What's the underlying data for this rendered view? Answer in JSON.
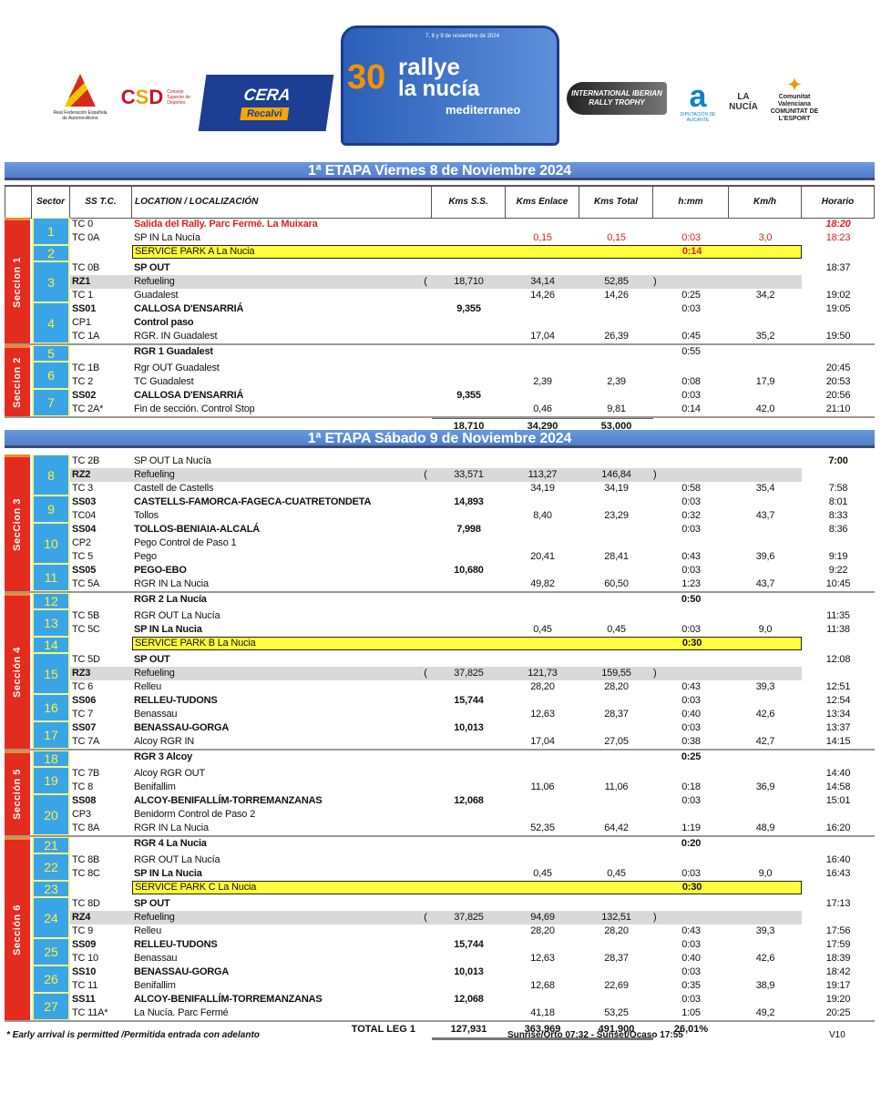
{
  "logos": {
    "fea": "Real Federación Española de Automovilismo",
    "csd": "Consejo Superior de Deportes",
    "cera": "CERA",
    "recalvi": "Recalvi",
    "rally_number": "30",
    "rally_name_1": "rallye",
    "rally_name_2": "la nucía",
    "rally_name_3": "mediterraneo",
    "rally_dates": "7, 8 y 9 de noviembre de 2024",
    "iberian": "INTERNATIONAL IBERIAN RALLY TROPHY",
    "diputacion": "DIPUTACIÓN DE ALICANTE",
    "lanucia": "LA NUCÍA",
    "esport": "Comunitat Valenciana COMUNITAT DE L'ESPORT"
  },
  "header": {
    "sector": "Sector",
    "ss": "SS T.C.",
    "location": "LOCATION / LOCALIZACIÓN",
    "kms_ss": "Kms S.S.",
    "kms_enlace": "Kms Enlace",
    "kms_total": "Kms Total",
    "hmm": "h:mm",
    "kmh": "Km/h",
    "horario": "Horario"
  },
  "colors": {
    "section": "#e32b1e",
    "sector": "#3aa5e6",
    "service": "#ffff3c",
    "refuel": "#d9d9d9",
    "stage_bar": "#5b8bd6"
  },
  "days": [
    {
      "title": "1ª ETAPA Viernes 8 de Noviembre 2024",
      "totals": {
        "ss": "18,710",
        "enlace": "34,290",
        "total": "53,000"
      },
      "sections": [
        {
          "label": "Seccion 1",
          "sectors": [
            {
              "num": "1",
              "rows": [
                [
                  "TC 0",
                  "Salida del Rally. Parc Fermé. La Muixara",
                  "",
                  "",
                  "",
                  "",
                  "",
                  "18:20",
                  "red0"
                ],
                [
                  "TC 0A",
                  "SP IN La Nucía",
                  "",
                  "0,15",
                  "0,15",
                  "0:03",
                  "3,0",
                  "18:23",
                  "red1"
                ]
              ]
            },
            {
              "num": "2",
              "rows": [
                [
                  "",
                  "SERVICE PARK A La Nucia",
                  "",
                  "",
                  "",
                  "0:14",
                  "",
                  "",
                  "spred"
                ]
              ]
            },
            {
              "num": "3",
              "rows": [
                [
                  "TC 0B",
                  "SP OUT",
                  "",
                  "",
                  "",
                  "",
                  "",
                  "18:37",
                  "bl"
                ],
                [
                  "RZ1",
                  "Refueling",
                  "18,710",
                  "34,14",
                  "52,85",
                  "",
                  "",
                  "",
                  "rz"
                ],
                [
                  "TC 1",
                  "Guadalest",
                  "",
                  "14,26",
                  "14,26",
                  "0:25",
                  "34,2",
                  "19:02",
                  ""
                ]
              ]
            },
            {
              "num": "4",
              "rows": [
                [
                  "SS01",
                  "CALLOSA D'ENSARRIÁ",
                  "9,355",
                  "",
                  "",
                  "0:03",
                  "",
                  "19:05",
                  "ss"
                ],
                [
                  "CP1",
                  "Control paso",
                  "",
                  "",
                  "",
                  "",
                  "",
                  "",
                  "bl"
                ],
                [
                  "TC 1A",
                  "RGR. IN Guadalest",
                  "",
                  "17,04",
                  "26,39",
                  "0:45",
                  "35,2",
                  "19:50",
                  ""
                ]
              ]
            }
          ]
        },
        {
          "label": "Seccion 2",
          "sectors": [
            {
              "num": "5",
              "rows": [
                [
                  "",
                  "RGR 1 Guadalest",
                  "",
                  "",
                  "",
                  "0:55",
                  "",
                  "",
                  "bl"
                ]
              ]
            },
            {
              "num": "6",
              "rows": [
                [
                  "TC 1B",
                  "Rgr OUT Guadalest",
                  "",
                  "",
                  "",
                  "",
                  "",
                  "20:45",
                  ""
                ],
                [
                  "TC 2",
                  "TC Guadalest",
                  "",
                  "2,39",
                  "2,39",
                  "0:08",
                  "17,9",
                  "20:53",
                  ""
                ]
              ]
            },
            {
              "num": "7",
              "rows": [
                [
                  "SS02",
                  "CALLOSA D'ENSARRIÁ",
                  "9,355",
                  "",
                  "",
                  "0:03",
                  "",
                  "20:56",
                  "ss"
                ],
                [
                  "TC 2A*",
                  "Fin de sección. Control Stop",
                  "",
                  "0,46",
                  "9,81",
                  "0:14",
                  "42,0",
                  "21:10",
                  ""
                ]
              ]
            }
          ]
        }
      ]
    },
    {
      "title": "1ª ETAPA Sábado 9 de Noviembre 2024",
      "sections": [
        {
          "label": "SecCion 3",
          "sectors": [
            {
              "num": "8",
              "rows": [
                [
                  "TC 2B",
                  "SP OUT La Nucía",
                  "",
                  "",
                  "",
                  "",
                  "",
                  "7:00",
                  "bh"
                ],
                [
                  "RZ2",
                  "Refueling",
                  "33,571",
                  "113,27",
                  "146,84",
                  "",
                  "",
                  "",
                  "rz"
                ],
                [
                  "TC 3",
                  "Castell de Castells",
                  "",
                  "34,19",
                  "34,19",
                  "0:58",
                  "35,4",
                  "7:58",
                  ""
                ]
              ]
            },
            {
              "num": "9",
              "rows": [
                [
                  "SS03",
                  "CASTELLS-FAMORCA-FAGECA-CUATRETONDETA",
                  "14,893",
                  "",
                  "",
                  "0:03",
                  "",
                  "8:01",
                  "ss"
                ],
                [
                  "TC04",
                  "Tollos",
                  "",
                  "8,40",
                  "23,29",
                  "0:32",
                  "43,7",
                  "8:33",
                  ""
                ]
              ]
            },
            {
              "num": "10",
              "rows": [
                [
                  "SS04",
                  "TOLLOS-BENIAIA-ALCALÁ",
                  "7,998",
                  "",
                  "",
                  "0:03",
                  "",
                  "8:36",
                  "ss"
                ],
                [
                  "CP2",
                  "Pego Control de Paso 1",
                  "",
                  "",
                  "",
                  "",
                  "",
                  "",
                  ""
                ],
                [
                  "TC 5",
                  "Pego",
                  "",
                  "20,41",
                  "28,41",
                  "0:43",
                  "39,6",
                  "9:19",
                  ""
                ]
              ]
            },
            {
              "num": "11",
              "rows": [
                [
                  "SS05",
                  "PEGO-EBO",
                  "10,680",
                  "",
                  "",
                  "0:03",
                  "",
                  "9:22",
                  "ss"
                ],
                [
                  "TC 5A",
                  "RGR IN La Nucia",
                  "",
                  "49,82",
                  "60,50",
                  "1:23",
                  "43,7",
                  "10:45",
                  ""
                ]
              ]
            }
          ]
        },
        {
          "label": "Sección 4",
          "sectors": [
            {
              "num": "12",
              "rows": [
                [
                  "",
                  "RGR 2 La Nucía",
                  "",
                  "",
                  "",
                  "0:50",
                  "",
                  "",
                  "blh"
                ]
              ]
            },
            {
              "num": "13",
              "rows": [
                [
                  "TC 5B",
                  "RGR OUT La Nucía",
                  "",
                  "",
                  "",
                  "",
                  "",
                  "11:35",
                  ""
                ],
                [
                  "TC 5C",
                  "SP IN La Nucia",
                  "",
                  "0,45",
                  "0,45",
                  "0:03",
                  "9,0",
                  "11:38",
                  "bl"
                ]
              ]
            },
            {
              "num": "14",
              "rows": [
                [
                  "",
                  "SERVICE PARK B La Nucia",
                  "",
                  "",
                  "",
                  "0:30",
                  "",
                  "",
                  "sp"
                ]
              ]
            },
            {
              "num": "15",
              "rows": [
                [
                  "TC 5D",
                  "SP OUT",
                  "",
                  "",
                  "",
                  "",
                  "",
                  "12:08",
                  "bl"
                ],
                [
                  "RZ3",
                  "Refueling",
                  "37,825",
                  "121,73",
                  "159,55",
                  "",
                  "",
                  "",
                  "rz"
                ],
                [
                  "TC 6",
                  "Relleu",
                  "",
                  "28,20",
                  "28,20",
                  "0:43",
                  "39,3",
                  "12:51",
                  ""
                ]
              ]
            },
            {
              "num": "16",
              "rows": [
                [
                  "SS06",
                  "RELLEU-TUDONS",
                  "15,744",
                  "",
                  "",
                  "0:03",
                  "",
                  "12:54",
                  "ss"
                ],
                [
                  "TC 7",
                  "Benassau",
                  "",
                  "12,63",
                  "28,37",
                  "0:40",
                  "42,6",
                  "13:34",
                  ""
                ]
              ]
            },
            {
              "num": "17",
              "rows": [
                [
                  "SS07",
                  "BENASSAU-GORGA",
                  "10,013",
                  "",
                  "",
                  "0:03",
                  "",
                  "13:37",
                  "ss"
                ],
                [
                  "TC 7A",
                  "Alcoy RGR IN",
                  "",
                  "17,04",
                  "27,05",
                  "0:38",
                  "42,7",
                  "14:15",
                  ""
                ]
              ]
            }
          ]
        },
        {
          "label": "Sección 5",
          "sectors": [
            {
              "num": "18",
              "rows": [
                [
                  "",
                  "RGR 3 Alcoy",
                  "",
                  "",
                  "",
                  "0:25",
                  "",
                  "",
                  "blh"
                ]
              ]
            },
            {
              "num": "19",
              "rows": [
                [
                  "TC 7B",
                  "Alcoy RGR OUT",
                  "",
                  "",
                  "",
                  "",
                  "",
                  "14:40",
                  ""
                ],
                [
                  "TC 8",
                  "Benifallim",
                  "",
                  "11,06",
                  "11,06",
                  "0:18",
                  "36,9",
                  "14:58",
                  ""
                ]
              ]
            },
            {
              "num": "20",
              "rows": [
                [
                  "SS08",
                  "ALCOY-BENIFALLÍM-TORREMANZANAS",
                  "12,068",
                  "",
                  "",
                  "0:03",
                  "",
                  "15:01",
                  "ss"
                ],
                [
                  "CP3",
                  "Benidorm Control de Paso 2",
                  "",
                  "",
                  "",
                  "",
                  "",
                  "",
                  ""
                ],
                [
                  "TC 8A",
                  "RGR IN La Nucia",
                  "",
                  "52,35",
                  "64,42",
                  "1:19",
                  "48,9",
                  "16:20",
                  ""
                ]
              ]
            }
          ]
        },
        {
          "label": "Sección 6",
          "sectors": [
            {
              "num": "21",
              "rows": [
                [
                  "",
                  "RGR 4 La Nucia",
                  "",
                  "",
                  "",
                  "0:20",
                  "",
                  "",
                  "blh"
                ]
              ]
            },
            {
              "num": "22",
              "rows": [
                [
                  "TC 8B",
                  "RGR OUT La Nucía",
                  "",
                  "",
                  "",
                  "",
                  "",
                  "16:40",
                  ""
                ],
                [
                  "TC 8C",
                  "SP IN La Nucia",
                  "",
                  "0,45",
                  "0,45",
                  "0:03",
                  "9,0",
                  "16:43",
                  "bl"
                ]
              ]
            },
            {
              "num": "23",
              "rows": [
                [
                  "",
                  "SERVICE PARK C La Nucia",
                  "",
                  "",
                  "",
                  "0:30",
                  "",
                  "",
                  "sp"
                ]
              ]
            },
            {
              "num": "24",
              "rows": [
                [
                  "TC 8D",
                  "SP OUT",
                  "",
                  "",
                  "",
                  "",
                  "",
                  "17:13",
                  "bl"
                ],
                [
                  "RZ4",
                  "Refueling",
                  "37,825",
                  "94,69",
                  "132,51",
                  "",
                  "",
                  "",
                  "rz"
                ],
                [
                  "TC 9",
                  "Relleu",
                  "",
                  "28,20",
                  "28,20",
                  "0:43",
                  "39,3",
                  "17:56",
                  ""
                ]
              ]
            },
            {
              "num": "25",
              "rows": [
                [
                  "SS09",
                  "RELLEU-TUDONS",
                  "15,744",
                  "",
                  "",
                  "0:03",
                  "",
                  "17:59",
                  "ss"
                ],
                [
                  "TC 10",
                  "Benassau",
                  "",
                  "12,63",
                  "28,37",
                  "0:40",
                  "42,6",
                  "18:39",
                  ""
                ]
              ]
            },
            {
              "num": "26",
              "rows": [
                [
                  "SS10",
                  "BENASSAU-GORGA",
                  "10,013",
                  "",
                  "",
                  "0:03",
                  "",
                  "18:42",
                  "ss"
                ],
                [
                  "TC 11",
                  "Benifallim",
                  "",
                  "12,68",
                  "22,69",
                  "0:35",
                  "38,9",
                  "19:17",
                  ""
                ]
              ]
            },
            {
              "num": "27",
              "rows": [
                [
                  "SS11",
                  "ALCOY-BENIFALLÍM-TORREMANZANAS",
                  "12,068",
                  "",
                  "",
                  "0:03",
                  "",
                  "19:20",
                  "ss"
                ],
                [
                  "TC 11A*",
                  "La Nucía. Parc Fermé",
                  "",
                  "41,18",
                  "53,25",
                  "1:05",
                  "49,2",
                  "20:25",
                  ""
                ]
              ]
            }
          ]
        }
      ]
    }
  ],
  "total_leg": {
    "label": "TOTAL LEG 1",
    "ss": "127,931",
    "enlace": "363,969",
    "total": "491,900",
    "percent": "26,01%"
  },
  "footer": {
    "note": "* Early arrival is permitted /Permitida entrada con adelanto",
    "sun": "Sunrise/Orto 07:32 - Sunset/Ocaso 17:55",
    "version": "V10"
  }
}
